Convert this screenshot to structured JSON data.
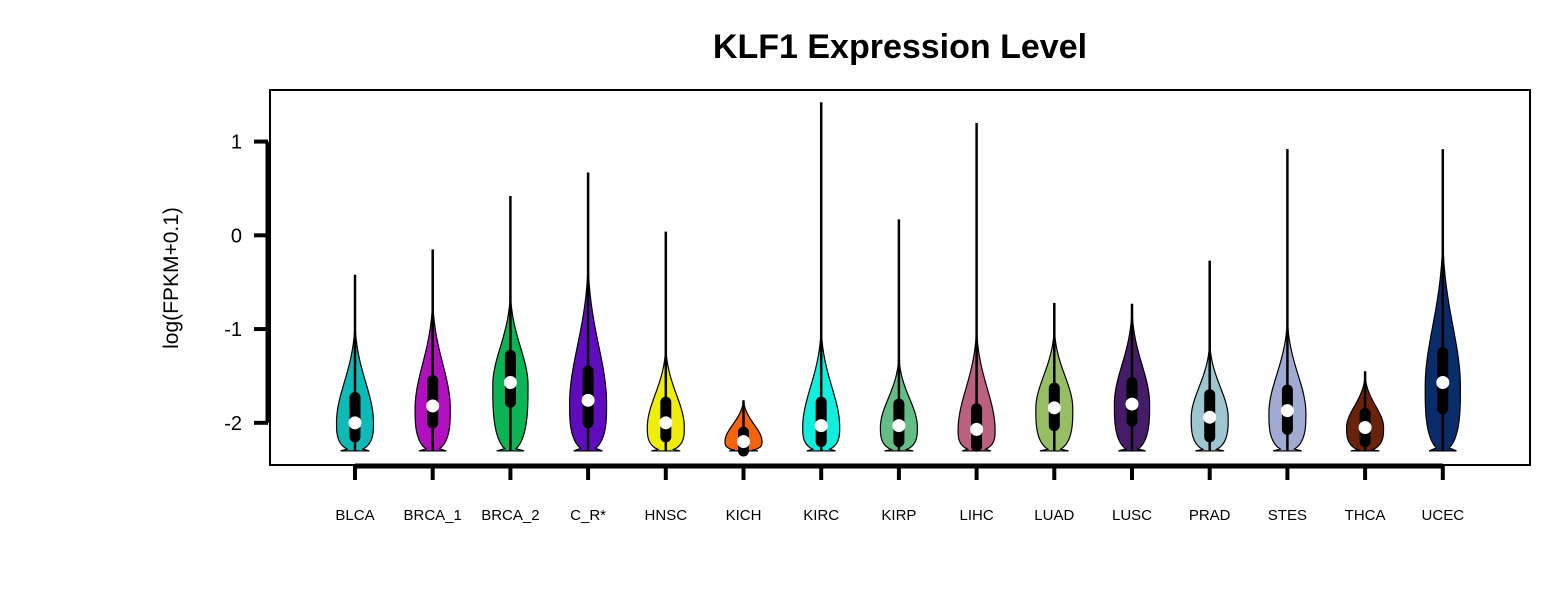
{
  "chart_data": {
    "type": "violin",
    "title": "KLF1 Expression Level",
    "xlabel": "",
    "ylabel": "log(FPKM+0.1)",
    "ylim": [
      -2.45,
      1.55
    ],
    "yticks": [
      1,
      0,
      -1,
      -2
    ],
    "grid": false,
    "legend": "none",
    "groups": [
      {
        "label": "BLCA",
        "color": "#0dbab6",
        "min": -2.3,
        "max": -0.42,
        "q1": -2.15,
        "q3": -1.73,
        "median": -2.0,
        "violin_top": -0.95,
        "bulge": -2.0,
        "half_width": 0.42
      },
      {
        "label": "BRCA_1",
        "color": "#b20fbf",
        "min": -2.3,
        "max": -0.15,
        "q1": -2.0,
        "q3": -1.55,
        "median": -1.82,
        "violin_top": -0.7,
        "bulge": -1.85,
        "half_width": 0.4
      },
      {
        "label": "BRCA_2",
        "color": "#0bb556",
        "min": -2.3,
        "max": 0.42,
        "q1": -1.78,
        "q3": -1.28,
        "median": -1.57,
        "violin_top": -0.62,
        "bulge": -1.6,
        "half_width": 0.4
      },
      {
        "label": "C_R*",
        "color": "#5e0cbe",
        "min": -2.3,
        "max": 0.67,
        "q1": -2.0,
        "q3": -1.45,
        "median": -1.76,
        "violin_top": -0.3,
        "bulge": -1.8,
        "half_width": 0.42
      },
      {
        "label": "HNSC",
        "color": "#eeee0a",
        "min": -2.3,
        "max": 0.04,
        "q1": -2.15,
        "q3": -1.78,
        "median": -2.0,
        "violin_top": -1.2,
        "bulge": -2.05,
        "half_width": 0.42
      },
      {
        "label": "KICH",
        "color": "#f4640d",
        "min": -2.3,
        "max": -1.76,
        "q1": -2.3,
        "q3": -2.1,
        "median": -2.2,
        "violin_top": -1.76,
        "bulge": -2.2,
        "half_width": 0.42
      },
      {
        "label": "KIRC",
        "color": "#12eedd",
        "min": -2.3,
        "max": 1.42,
        "q1": -2.2,
        "q3": -1.78,
        "median": -2.03,
        "violin_top": -1.0,
        "bulge": -2.05,
        "half_width": 0.42
      },
      {
        "label": "KIRP",
        "color": "#63bd85",
        "min": -2.3,
        "max": 0.17,
        "q1": -2.2,
        "q3": -1.8,
        "median": -2.03,
        "violin_top": -1.3,
        "bulge": -2.05,
        "half_width": 0.42
      },
      {
        "label": "LIHC",
        "color": "#bb6080",
        "min": -2.3,
        "max": 1.2,
        "q1": -2.25,
        "q3": -1.85,
        "median": -2.07,
        "violin_top": -1.0,
        "bulge": -2.08,
        "half_width": 0.42
      },
      {
        "label": "LUAD",
        "color": "#97be64",
        "min": -2.3,
        "max": -0.72,
        "q1": -2.03,
        "q3": -1.63,
        "median": -1.84,
        "violin_top": -1.0,
        "bulge": -1.85,
        "half_width": 0.42
      },
      {
        "label": "LUSC",
        "color": "#461b68",
        "min": -2.3,
        "max": -0.73,
        "q1": -1.98,
        "q3": -1.57,
        "median": -1.8,
        "violin_top": -0.8,
        "bulge": -1.8,
        "half_width": 0.4
      },
      {
        "label": "PRAD",
        "color": "#9ec5d0",
        "min": -2.3,
        "max": -0.27,
        "q1": -2.15,
        "q3": -1.7,
        "median": -1.94,
        "violin_top": -1.15,
        "bulge": -1.95,
        "half_width": 0.42
      },
      {
        "label": "STES",
        "color": "#a0abd4",
        "min": -2.3,
        "max": 0.92,
        "q1": -2.07,
        "q3": -1.65,
        "median": -1.87,
        "violin_top": -0.9,
        "bulge": -1.9,
        "half_width": 0.42
      },
      {
        "label": "THCA",
        "color": "#6b220c",
        "min": -2.3,
        "max": -1.45,
        "q1": -2.2,
        "q3": -1.9,
        "median": -2.05,
        "violin_top": -1.5,
        "bulge": -2.05,
        "half_width": 0.42
      },
      {
        "label": "UCEC",
        "color": "#0b2c6a",
        "min": -2.3,
        "max": 0.92,
        "q1": -1.85,
        "q3": -1.25,
        "median": -1.57,
        "violin_top": -0.05,
        "bulge": -1.62,
        "half_width": 0.4
      }
    ]
  }
}
